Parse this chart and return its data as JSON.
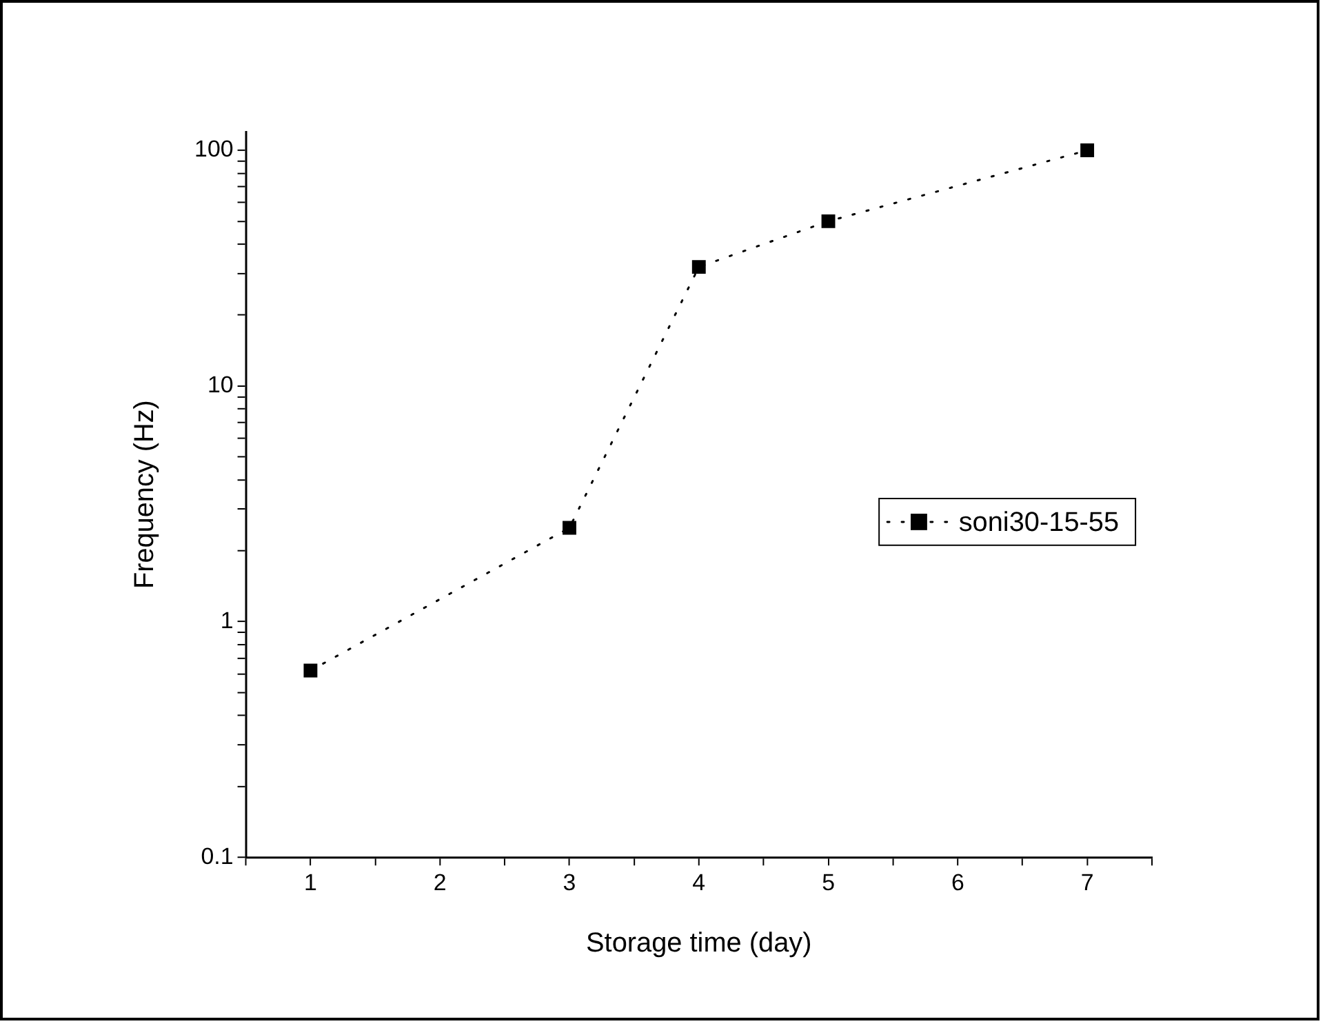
{
  "chart_data": {
    "type": "line",
    "xlabel": "Storage time (day)",
    "ylabel": "Frequency (Hz)",
    "x": [
      1,
      3,
      4,
      5,
      7
    ],
    "series": [
      {
        "name": "soni30-15-55",
        "color": "#000000",
        "values": [
          0.62,
          2.5,
          32,
          50,
          100
        ]
      }
    ],
    "log": "y",
    "xlim": [
      0.5,
      7.5
    ],
    "ylim": [
      0.1,
      120
    ],
    "xticks": [
      {
        "value": 0.5,
        "label": null
      },
      1,
      {
        "value": 1.5,
        "label": null
      },
      2,
      {
        "value": 2.5,
        "label": null
      },
      3,
      {
        "value": 3.5,
        "label": null
      },
      4,
      {
        "value": 4.5,
        "label": null
      },
      5,
      {
        "value": 5.5,
        "label": null
      },
      6,
      {
        "value": 6.5,
        "label": null
      },
      7,
      {
        "value": 7.5,
        "label": null
      }
    ],
    "yticks": [
      0.1,
      {
        "value": 0.2,
        "label": null
      },
      {
        "value": 0.3,
        "label": null
      },
      {
        "value": 0.4,
        "label": null
      },
      {
        "value": 0.5,
        "label": null
      },
      {
        "value": 0.6,
        "label": null
      },
      {
        "value": 0.7,
        "label": null
      },
      {
        "value": 0.8,
        "label": null
      },
      {
        "value": 0.9,
        "label": null
      },
      1,
      {
        "value": 2,
        "label": null
      },
      {
        "value": 3,
        "label": null
      },
      {
        "value": 4,
        "label": null
      },
      {
        "value": 5,
        "label": null
      },
      {
        "value": 6,
        "label": null
      },
      {
        "value": 7,
        "label": null
      },
      {
        "value": 8,
        "label": null
      },
      {
        "value": 9,
        "label": null
      },
      10,
      {
        "value": 20,
        "label": null
      },
      {
        "value": 30,
        "label": null
      },
      {
        "value": 40,
        "label": null
      },
      {
        "value": 50,
        "label": null
      },
      {
        "value": 60,
        "label": null
      },
      {
        "value": 70,
        "label": null
      },
      {
        "value": 80,
        "label": null
      },
      {
        "value": 90,
        "label": null
      },
      100
    ],
    "grid": false,
    "legend": "right",
    "marker": "square",
    "line_style": "dotted"
  }
}
